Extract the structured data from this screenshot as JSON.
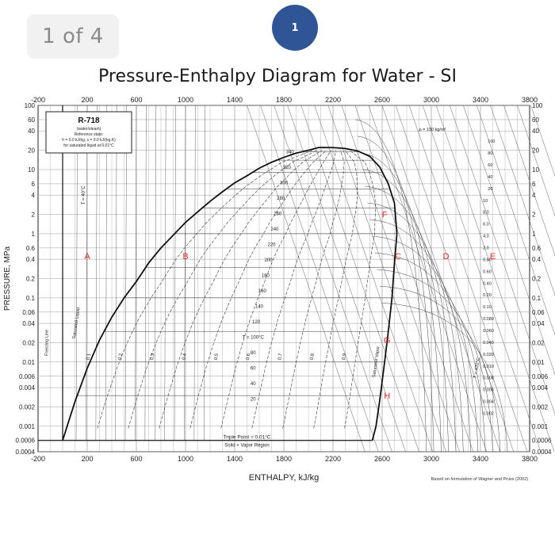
{
  "page_indicator": "1 of 4",
  "step_badge": "1",
  "chart_data": {
    "type": "line",
    "title": "Pressure-Enthalpy Diagram for Water  - SI",
    "xlabel": "ENTHALPY, kJ/kg",
    "ylabel": "PRESSURE, MPa",
    "x_scale": "linear",
    "y_scale": "log",
    "xlim": [
      -200,
      3800
    ],
    "ylim": [
      0.0004,
      100
    ],
    "x_ticks": [
      "-200",
      "200",
      "600",
      "1000",
      "1400",
      "1800",
      "2200",
      "2600",
      "3000",
      "3400",
      "3800"
    ],
    "y_ticks": [
      {
        "value": 100,
        "label": "100"
      },
      {
        "value": 60,
        "label": "60"
      },
      {
        "value": 40,
        "label": "40"
      },
      {
        "value": 20,
        "label": "20"
      },
      {
        "value": 10,
        "label": "10"
      },
      {
        "value": 6,
        "label": "6"
      },
      {
        "value": 4,
        "label": "4"
      },
      {
        "value": 2,
        "label": "2"
      },
      {
        "value": 1,
        "label": "1"
      },
      {
        "value": 0.6,
        "label": "0.6"
      },
      {
        "value": 0.4,
        "label": "0.4"
      },
      {
        "value": 0.2,
        "label": "0.2"
      },
      {
        "value": 0.1,
        "label": "0.1"
      },
      {
        "value": 0.06,
        "label": "0.06"
      },
      {
        "value": 0.04,
        "label": "0.04"
      },
      {
        "value": 0.02,
        "label": "0.02"
      },
      {
        "value": 0.01,
        "label": "0.01"
      },
      {
        "value": 0.006,
        "label": "0.006"
      },
      {
        "value": 0.004,
        "label": "0.004"
      },
      {
        "value": 0.002,
        "label": "0.002"
      },
      {
        "value": 0.001,
        "label": "0.001"
      },
      {
        "value": 0.0006,
        "label": "0.0006"
      },
      {
        "value": 0.0004,
        "label": "0.0004"
      }
    ],
    "grid": true,
    "saturation_dome": {
      "liquid_line": [
        {
          "h": 0,
          "p": 0.0006
        },
        {
          "h": 50,
          "p": 0.0012
        },
        {
          "h": 100,
          "p": 0.0024
        },
        {
          "h": 200,
          "p": 0.008
        },
        {
          "h": 300,
          "p": 0.022
        },
        {
          "h": 400,
          "p": 0.05
        },
        {
          "h": 500,
          "p": 0.1
        },
        {
          "h": 600,
          "p": 0.18
        },
        {
          "h": 700,
          "p": 0.35
        },
        {
          "h": 800,
          "p": 0.6
        },
        {
          "h": 900,
          "p": 0.95
        },
        {
          "h": 1000,
          "p": 1.5
        },
        {
          "h": 1100,
          "p": 2.2
        },
        {
          "h": 1200,
          "p": 3.2
        },
        {
          "h": 1300,
          "p": 4.5
        },
        {
          "h": 1400,
          "p": 6.2
        },
        {
          "h": 1500,
          "p": 8.0
        },
        {
          "h": 1600,
          "p": 10.5
        },
        {
          "h": 1700,
          "p": 13.0
        },
        {
          "h": 1800,
          "p": 15.5
        },
        {
          "h": 1900,
          "p": 18.0
        },
        {
          "h": 2000,
          "p": 20.0
        },
        {
          "h": 2084,
          "p": 22.06
        }
      ],
      "vapor_line": [
        {
          "h": 2084,
          "p": 22.06
        },
        {
          "h": 2200,
          "p": 22.0
        },
        {
          "h": 2300,
          "p": 21.3
        },
        {
          "h": 2400,
          "p": 19.5
        },
        {
          "h": 2500,
          "p": 16.0
        },
        {
          "h": 2580,
          "p": 11.0
        },
        {
          "h": 2650,
          "p": 6.0
        },
        {
          "h": 2700,
          "p": 3.0
        },
        {
          "h": 2720,
          "p": 1.0
        },
        {
          "h": 2700,
          "p": 0.35
        },
        {
          "h": 2680,
          "p": 0.1
        },
        {
          "h": 2650,
          "p": 0.03
        },
        {
          "h": 2620,
          "p": 0.01
        },
        {
          "h": 2580,
          "p": 0.0025
        },
        {
          "h": 2550,
          "p": 0.001
        },
        {
          "h": 2520,
          "p": 0.0006
        }
      ]
    },
    "compressed_liquid_line": [
      {
        "h": 0,
        "p": 0.0006
      },
      {
        "h": 0,
        "p": 100
      }
    ],
    "triple_point_pressure": 0.0006,
    "state_points": [
      {
        "label": "A",
        "h": 200,
        "p": 0.45
      },
      {
        "label": "B",
        "h": 1000,
        "p": 0.45
      },
      {
        "label": "C",
        "h": 2730,
        "p": 0.45
      },
      {
        "label": "D",
        "h": 3120,
        "p": 0.45
      },
      {
        "label": "E",
        "h": 3500,
        "p": 0.45
      },
      {
        "label": "F",
        "h": 2620,
        "p": 2.0
      },
      {
        "label": "G",
        "h": 2640,
        "p": 0.022
      },
      {
        "label": "H",
        "h": 2640,
        "p": 0.003
      }
    ],
    "legend_box": {
      "title": "R-718",
      "lines": [
        "(water/steam)",
        "Reference state:",
        "h = 0.0 kJ/kg,  s = 0.0 kJ/(kg.K)",
        "for saturated liquid at 0.01°C"
      ]
    },
    "isotherm_labels_inside_dome": [
      "340",
      "320",
      "300",
      "280",
      "260",
      "240",
      "220",
      "200",
      "180",
      "160",
      "140",
      "120",
      "T = 100°C",
      "80",
      "60",
      "40",
      "20"
    ],
    "quality_labels": [
      "0.1",
      "0.2",
      "0.3",
      "0.4",
      "0.5",
      "0.6",
      "0.7",
      "0.8",
      "0.9"
    ],
    "density_labels_right": [
      "ρ = 150 kg/m³",
      "100",
      "80",
      "60",
      "40",
      "20",
      "10",
      "8.0",
      "6.0",
      "4.0",
      "2.0",
      "0.80",
      "0.60",
      "0.40",
      "0.20",
      "0.10",
      "0.080",
      "0.060",
      "0.040",
      "0.020",
      "0.010",
      "0.008",
      "0.006",
      "0.004",
      "0.002"
    ],
    "triple_point_label": "Triple Point = 0.01°C",
    "solid_vapor_label": "Solid + Vapor Region",
    "freezing_line_label": "Freezing Line",
    "saturated_liquid_label": "Saturated Liquid",
    "saturated_vapor_label": "Saturated Vapor",
    "temperature_label_liquid": "T = 40°C",
    "temperature_label_vapor": "T = 420°C",
    "footnote": "Based on formulation of Wagner and Pruss (2002)",
    "colors": {
      "point_label": "#d9302c",
      "curve": "#111111",
      "grid": "#9a9a9a",
      "badge": "#2f5597"
    }
  }
}
